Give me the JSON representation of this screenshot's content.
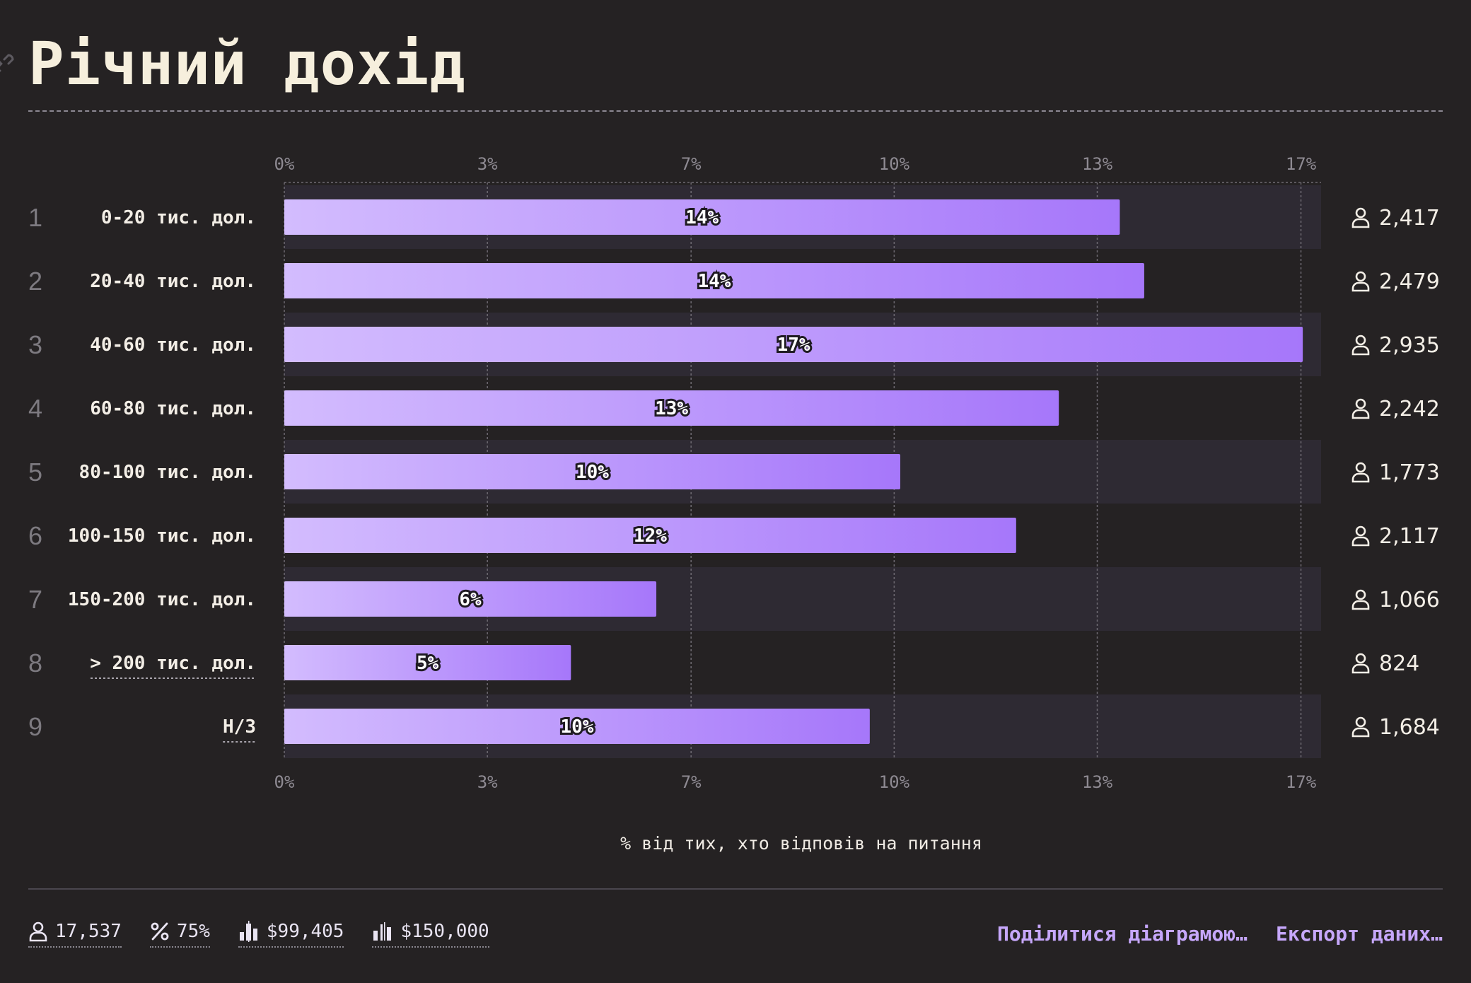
{
  "title": "Річний дохід",
  "colors": {
    "background": "#252223",
    "bar_start": "#d3bcfe",
    "bar_end": "#a677fa",
    "band": "#2e2a33",
    "link": "#c6a7fb"
  },
  "icons": {
    "title_link": "link-icon",
    "respondents": "person-icon",
    "percent": "percent-icon",
    "mean": "bar-chart-icon",
    "median": "bar-chart-icon"
  },
  "chart_data": {
    "type": "bar",
    "orientation": "horizontal",
    "xlabel": "% від тих, хто відповів на питання",
    "ylabel": "",
    "xlim": [
      0,
      17
    ],
    "x_ticks": [
      0,
      3.33,
      6.67,
      10,
      13.33,
      16.67
    ],
    "x_tick_labels": [
      "0%",
      "3%",
      "7%",
      "10%",
      "13%",
      "17%"
    ],
    "grid": true,
    "alternating_row_bands": true,
    "rows": [
      {
        "rank": "1",
        "category": "0-20 тис. дол.",
        "value": 13.7,
        "label": "14%",
        "count": "2,417",
        "underlined": false
      },
      {
        "rank": "2",
        "category": "20-40 тис. дол.",
        "value": 14.1,
        "label": "14%",
        "count": "2,479",
        "underlined": false
      },
      {
        "rank": "3",
        "category": "40-60 тис. дол.",
        "value": 16.7,
        "label": "17%",
        "count": "2,935",
        "underlined": false
      },
      {
        "rank": "4",
        "category": "60-80 тис. дол.",
        "value": 12.7,
        "label": "13%",
        "count": "2,242",
        "underlined": false
      },
      {
        "rank": "5",
        "category": "80-100 тис. дол.",
        "value": 10.1,
        "label": "10%",
        "count": "1,773",
        "underlined": false
      },
      {
        "rank": "6",
        "category": "100-150 тис. дол.",
        "value": 12.0,
        "label": "12%",
        "count": "2,117",
        "underlined": false
      },
      {
        "rank": "7",
        "category": "150-200 тис. дол.",
        "value": 6.1,
        "label": "6%",
        "count": "1,066",
        "underlined": false
      },
      {
        "rank": "8",
        "category": "> 200 тис. дол.",
        "value": 4.7,
        "label": "5%",
        "count": "824",
        "underlined": true
      },
      {
        "rank": "9",
        "category": "Н/З",
        "value": 9.6,
        "label": "10%",
        "count": "1,684",
        "underlined": true
      }
    ]
  },
  "footer": {
    "stats": {
      "respondents": "17,537",
      "percent": "75%",
      "mean": "$99,405",
      "median": "$150,000"
    },
    "actions": {
      "share": "Поділитися діаграмою…",
      "export": "Експорт даних…"
    }
  }
}
